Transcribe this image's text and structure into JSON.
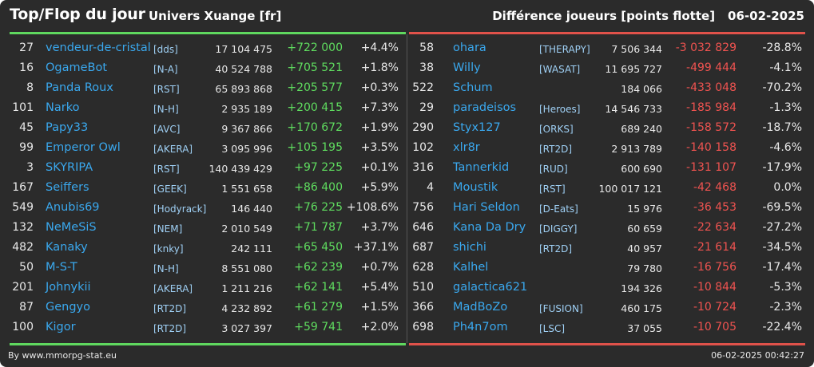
{
  "header": {
    "title": "Top/Flop du jour",
    "universe": "Univers Xuange [fr]",
    "metric": "Différence joueurs [points flotte]",
    "date": "06-02-2025"
  },
  "colors": {
    "background": "#2b2b2b",
    "top_accent": "#5fd85f",
    "flop_accent": "#e0524a",
    "player_link": "#3aa8ee",
    "positive": "#5fdc5f",
    "negative": "#ef5350"
  },
  "top": [
    {
      "rank": "27",
      "name": "vendeur-de-cristal",
      "alliance": "[dds]",
      "points": "17 104 475",
      "diff": "+722 000",
      "pct": "+4.4%"
    },
    {
      "rank": "16",
      "name": "OgameBot",
      "alliance": "[N-A]",
      "points": "40 524 788",
      "diff": "+705 521",
      "pct": "+1.8%"
    },
    {
      "rank": "8",
      "name": "Panda Roux",
      "alliance": "[RST]",
      "points": "65 893 868",
      "diff": "+205 577",
      "pct": "+0.3%"
    },
    {
      "rank": "101",
      "name": "Narko",
      "alliance": "[N-H]",
      "points": "2 935 189",
      "diff": "+200 415",
      "pct": "+7.3%"
    },
    {
      "rank": "45",
      "name": "Papy33",
      "alliance": "[AVC]",
      "points": "9 367 866",
      "diff": "+170 672",
      "pct": "+1.9%"
    },
    {
      "rank": "99",
      "name": "Emperor Owl",
      "alliance": "[AKERA]",
      "points": "3 095 996",
      "diff": "+105 195",
      "pct": "+3.5%"
    },
    {
      "rank": "3",
      "name": "SKYRIPA",
      "alliance": "[RST]",
      "points": "140 439 429",
      "diff": "+97 225",
      "pct": "+0.1%"
    },
    {
      "rank": "167",
      "name": "Seiffers",
      "alliance": "[GEEK]",
      "points": "1 551 658",
      "diff": "+86 400",
      "pct": "+5.9%"
    },
    {
      "rank": "549",
      "name": "Anubis69",
      "alliance": "[Hodyrack]",
      "points": "146 440",
      "diff": "+76 225",
      "pct": "+108.6%"
    },
    {
      "rank": "132",
      "name": "NeMeSiS",
      "alliance": "[NEM]",
      "points": "2 010 549",
      "diff": "+71 787",
      "pct": "+3.7%"
    },
    {
      "rank": "482",
      "name": "Kanaky",
      "alliance": "[knky]",
      "points": "242 111",
      "diff": "+65 450",
      "pct": "+37.1%"
    },
    {
      "rank": "50",
      "name": "M-S-T",
      "alliance": "[N-H]",
      "points": "8 551 080",
      "diff": "+62 239",
      "pct": "+0.7%"
    },
    {
      "rank": "201",
      "name": "Johnykii",
      "alliance": "[AKERA]",
      "points": "1 211 216",
      "diff": "+62 141",
      "pct": "+5.4%"
    },
    {
      "rank": "87",
      "name": "Gengyo",
      "alliance": "[RT2D]",
      "points": "4 232 892",
      "diff": "+61 279",
      "pct": "+1.5%"
    },
    {
      "rank": "100",
      "name": "Kigor",
      "alliance": "[RT2D]",
      "points": "3 027 397",
      "diff": "+59 741",
      "pct": "+2.0%"
    }
  ],
  "flop": [
    {
      "rank": "58",
      "name": "ohara",
      "alliance": "[THERAPY]",
      "points": "7 506 344",
      "diff": "-3 032 829",
      "pct": "-28.8%"
    },
    {
      "rank": "38",
      "name": "Willy",
      "alliance": "[WASAT]",
      "points": "11 695 727",
      "diff": "-499 444",
      "pct": "-4.1%"
    },
    {
      "rank": "522",
      "name": "Schum",
      "alliance": "",
      "points": "184 066",
      "diff": "-433 048",
      "pct": "-70.2%"
    },
    {
      "rank": "29",
      "name": "paradeisos",
      "alliance": "[Heroes]",
      "points": "14 546 733",
      "diff": "-185 984",
      "pct": "-1.3%"
    },
    {
      "rank": "290",
      "name": "Styx127",
      "alliance": "[ORKS]",
      "points": "689 240",
      "diff": "-158 572",
      "pct": "-18.7%"
    },
    {
      "rank": "102",
      "name": "xlr8r",
      "alliance": "[RT2D]",
      "points": "2 913 789",
      "diff": "-140 158",
      "pct": "-4.6%"
    },
    {
      "rank": "316",
      "name": "Tannerkid",
      "alliance": "[RUD]",
      "points": "600 690",
      "diff": "-131 107",
      "pct": "-17.9%"
    },
    {
      "rank": "4",
      "name": "Moustik",
      "alliance": "[RST]",
      "points": "100 017 121",
      "diff": "-42 468",
      "pct": "0.0%"
    },
    {
      "rank": "756",
      "name": "Hari Seldon",
      "alliance": "[D-Eats]",
      "points": "15 976",
      "diff": "-36 453",
      "pct": "-69.5%"
    },
    {
      "rank": "646",
      "name": "Kana Da Dry",
      "alliance": "[DIGGY]",
      "points": "60 659",
      "diff": "-22 634",
      "pct": "-27.2%"
    },
    {
      "rank": "687",
      "name": "shichi",
      "alliance": "[RT2D]",
      "points": "40 957",
      "diff": "-21 614",
      "pct": "-34.5%"
    },
    {
      "rank": "628",
      "name": "Kalhel",
      "alliance": "",
      "points": "79 780",
      "diff": "-16 756",
      "pct": "-17.4%"
    },
    {
      "rank": "510",
      "name": "galactica621",
      "alliance": "",
      "points": "194 326",
      "diff": "-10 844",
      "pct": "-5.3%"
    },
    {
      "rank": "366",
      "name": "MadBoZo",
      "alliance": "[FUSION]",
      "points": "460 175",
      "diff": "-10 724",
      "pct": "-2.3%"
    },
    {
      "rank": "698",
      "name": "Ph4n7om",
      "alliance": "[LSC]",
      "points": "37 055",
      "diff": "-10 705",
      "pct": "-22.4%"
    }
  ],
  "footer": {
    "source": "By www.mmorpg-stat.eu",
    "timestamp": "06-02-2025 00:42:27"
  }
}
